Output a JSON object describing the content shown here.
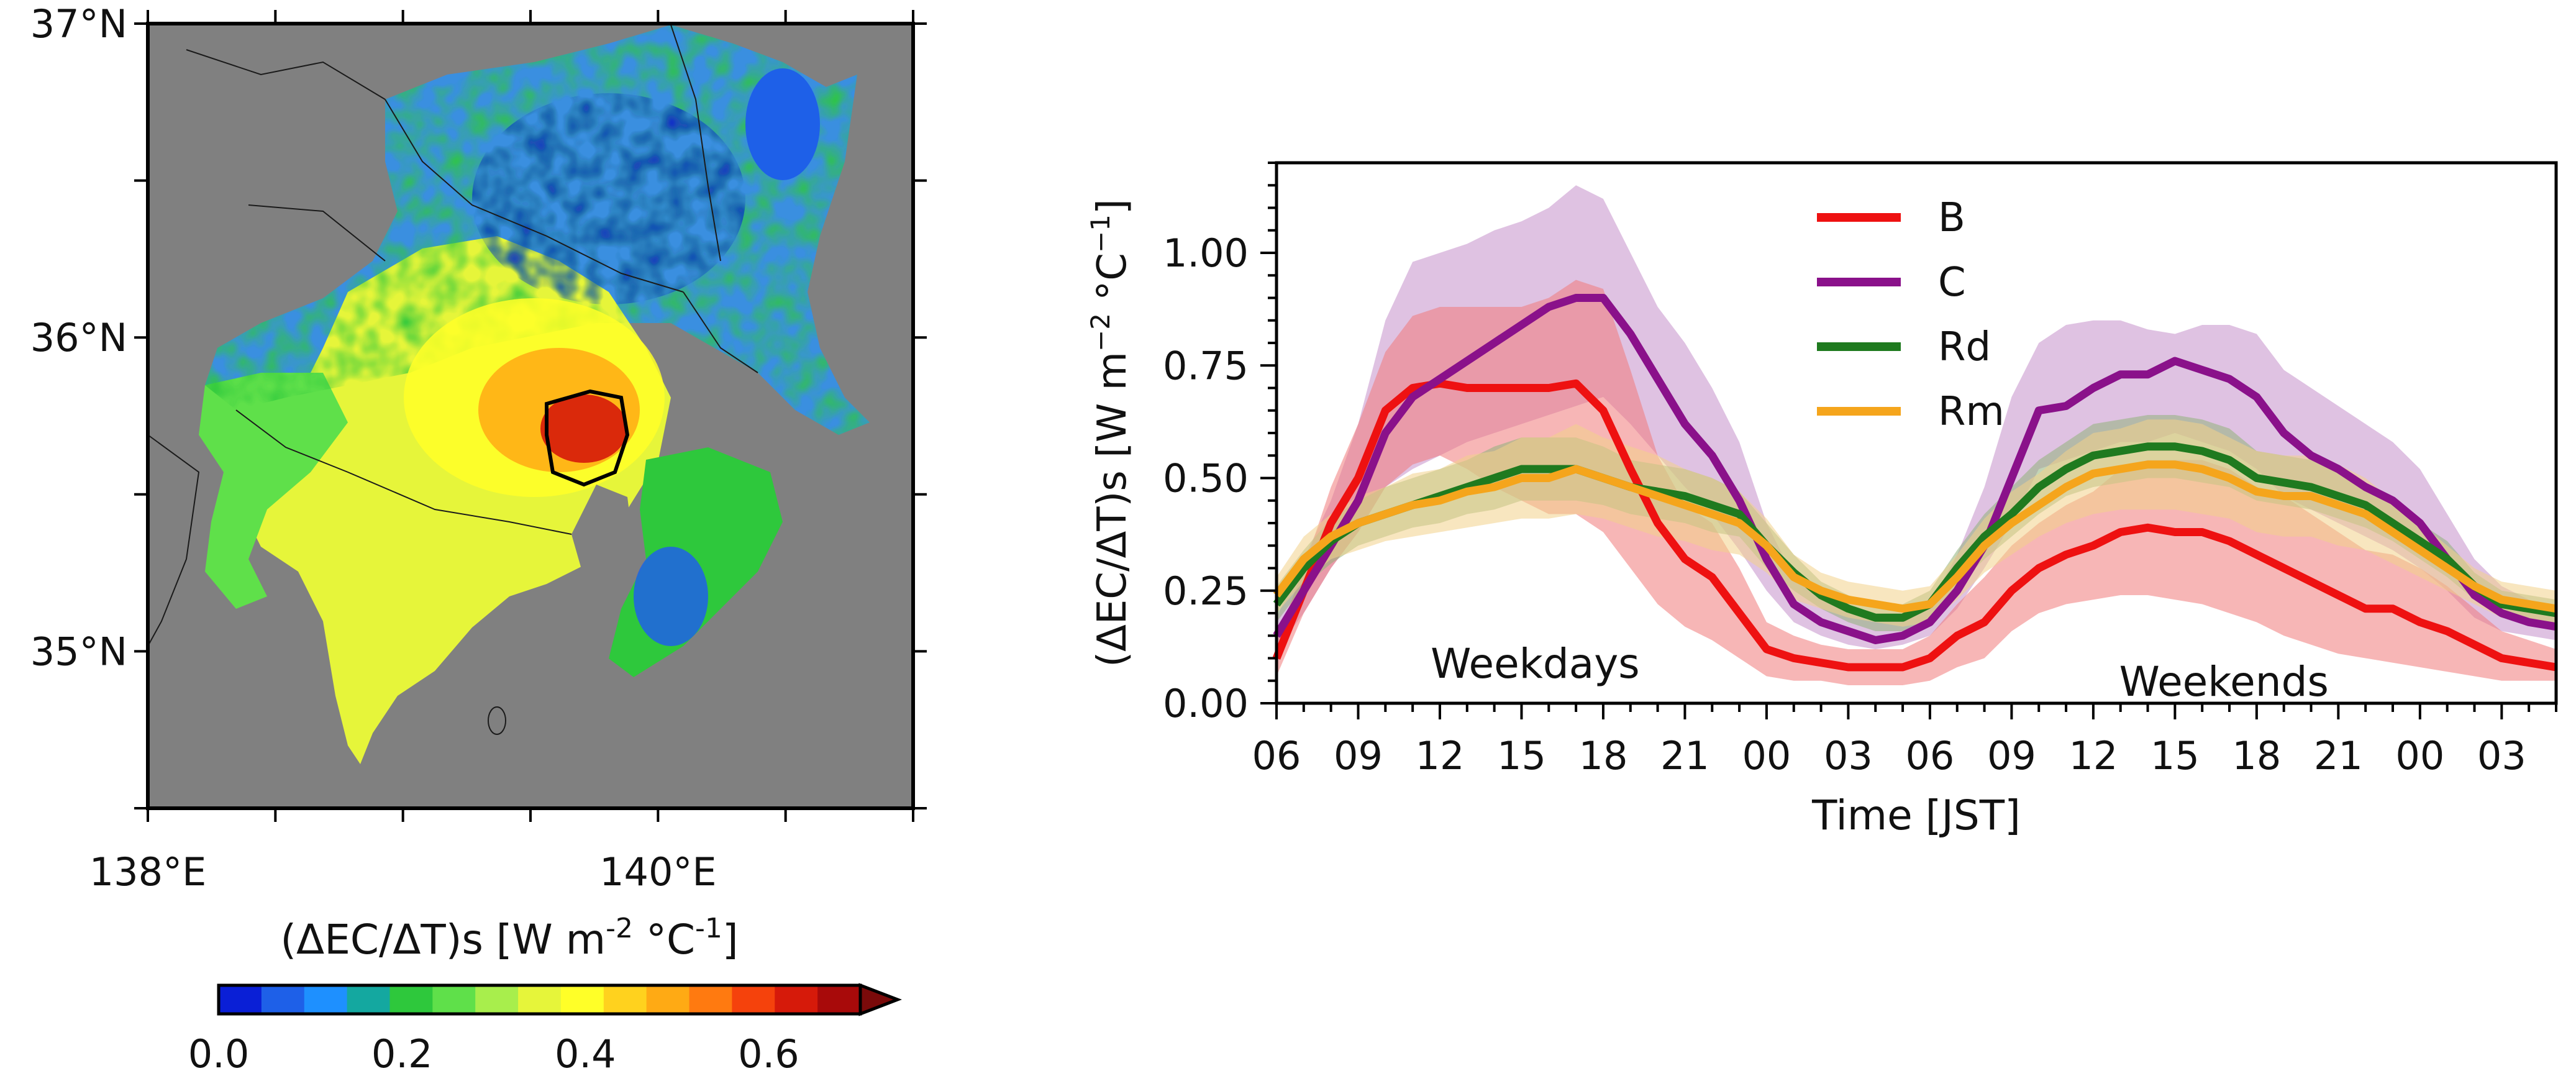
{
  "chart_data": [
    {
      "type": "heatmap",
      "title": "",
      "x_tick_labels": [
        "138°E",
        "140°E"
      ],
      "y_tick_labels": [
        "37°N",
        "36°N",
        "35°N"
      ],
      "x_ticks": [
        138,
        140
      ],
      "y_ticks": [
        37,
        36,
        35
      ],
      "xlim": [
        138,
        141
      ],
      "ylim": [
        34.5,
        37
      ],
      "colorbar": {
        "label_main": "(ΔEC/ΔT)s [W m",
        "label_exp1": "-2",
        "label_mid": " °C",
        "label_exp2": "-1",
        "label_end": "]",
        "tick_labels": [
          "0.0",
          "0.2",
          "0.4",
          "0.6"
        ],
        "ticks": [
          0.0,
          0.2,
          0.4,
          0.6
        ],
        "range": [
          0.0,
          0.7
        ],
        "extend": "max",
        "colors": [
          "#0a1fd6",
          "#1e60e8",
          "#1e90ff",
          "#14a8a0",
          "#2ec83c",
          "#5fe04a",
          "#a8ee4c",
          "#e6f53a",
          "#ffff28",
          "#ffd21e",
          "#ffaa14",
          "#ff7a10",
          "#f5420c",
          "#d61a0a",
          "#a80a0a"
        ]
      },
      "map_colors": {
        "background": "#808080",
        "boundary": "#1a1a1a"
      }
    },
    {
      "type": "line",
      "title": "",
      "xlabel": "Time [JST]",
      "ylabel_main": "(ΔEC/ΔT)s [W m",
      "ylabel_exp1": "−2",
      "ylabel_mid": " °C",
      "ylabel_exp2": "−1",
      "ylabel_end": "]",
      "x": [
        6,
        7,
        8,
        9,
        10,
        11,
        12,
        13,
        14,
        15,
        16,
        17,
        18,
        19,
        20,
        21,
        22,
        23,
        24,
        25,
        26,
        27,
        28,
        29,
        30,
        31,
        32,
        33,
        34,
        35,
        36,
        37,
        38,
        39,
        40,
        41,
        42,
        43,
        44,
        45,
        46,
        47,
        48,
        49,
        50,
        51,
        52,
        53
      ],
      "xlim": [
        6,
        53
      ],
      "ylim": [
        0.0,
        1.2
      ],
      "x_ticks": [
        6,
        9,
        12,
        15,
        18,
        21,
        24,
        27,
        30,
        33,
        36,
        39,
        42,
        45,
        48,
        51
      ],
      "x_tick_labels": [
        "06",
        "09",
        "12",
        "15",
        "18",
        "21",
        "00",
        "03",
        "06",
        "09",
        "12",
        "15",
        "18",
        "21",
        "00",
        "03"
      ],
      "y_ticks": [
        0.0,
        0.25,
        0.5,
        0.75,
        1.0
      ],
      "y_tick_labels": [
        "0.00",
        "0.25",
        "0.50",
        "0.75",
        "1.00"
      ],
      "annotations": [
        {
          "text": "Weekdays",
          "x": 15.5,
          "y": 0.04
        },
        {
          "text": "Weekends",
          "x": 40.8,
          "y": 0.0
        }
      ],
      "legend_placement": "upper-center",
      "series": [
        {
          "name": "B",
          "color": "#ee1111",
          "band_color": "#f07a7a",
          "values": [
            0.1,
            0.25,
            0.4,
            0.5,
            0.65,
            0.7,
            0.71,
            0.7,
            0.7,
            0.7,
            0.7,
            0.71,
            0.65,
            0.52,
            0.4,
            0.32,
            0.28,
            0.2,
            0.12,
            0.1,
            0.09,
            0.08,
            0.08,
            0.08,
            0.1,
            0.15,
            0.18,
            0.25,
            0.3,
            0.33,
            0.35,
            0.38,
            0.39,
            0.38,
            0.38,
            0.36,
            0.33,
            0.3,
            0.27,
            0.24,
            0.21,
            0.21,
            0.18,
            0.16,
            0.13,
            0.1,
            0.09,
            0.08
          ],
          "lower": [
            0.06,
            0.2,
            0.3,
            0.38,
            0.48,
            0.53,
            0.55,
            0.52,
            0.48,
            0.45,
            0.42,
            0.42,
            0.38,
            0.3,
            0.22,
            0.17,
            0.14,
            0.1,
            0.06,
            0.05,
            0.05,
            0.04,
            0.04,
            0.04,
            0.05,
            0.08,
            0.1,
            0.16,
            0.2,
            0.22,
            0.23,
            0.24,
            0.24,
            0.23,
            0.22,
            0.2,
            0.18,
            0.15,
            0.13,
            0.11,
            0.1,
            0.09,
            0.08,
            0.07,
            0.06,
            0.05,
            0.05,
            0.05
          ],
          "upper": [
            0.14,
            0.3,
            0.48,
            0.62,
            0.78,
            0.86,
            0.88,
            0.88,
            0.88,
            0.88,
            0.9,
            0.94,
            0.92,
            0.74,
            0.55,
            0.44,
            0.4,
            0.3,
            0.18,
            0.15,
            0.13,
            0.12,
            0.12,
            0.12,
            0.15,
            0.22,
            0.28,
            0.35,
            0.4,
            0.44,
            0.47,
            0.52,
            0.54,
            0.54,
            0.54,
            0.52,
            0.48,
            0.46,
            0.42,
            0.38,
            0.34,
            0.33,
            0.3,
            0.26,
            0.21,
            0.16,
            0.14,
            0.12
          ]
        },
        {
          "name": "C",
          "color": "#8a118a",
          "band_color": "#c48fca",
          "values": [
            0.15,
            0.25,
            0.35,
            0.45,
            0.6,
            0.68,
            0.72,
            0.76,
            0.8,
            0.84,
            0.88,
            0.9,
            0.9,
            0.82,
            0.72,
            0.62,
            0.55,
            0.45,
            0.32,
            0.22,
            0.18,
            0.16,
            0.14,
            0.15,
            0.18,
            0.25,
            0.35,
            0.5,
            0.65,
            0.66,
            0.7,
            0.73,
            0.73,
            0.76,
            0.74,
            0.72,
            0.68,
            0.6,
            0.55,
            0.52,
            0.48,
            0.45,
            0.4,
            0.32,
            0.24,
            0.2,
            0.18,
            0.17
          ],
          "lower": [
            0.12,
            0.2,
            0.3,
            0.38,
            0.48,
            0.52,
            0.55,
            0.58,
            0.6,
            0.62,
            0.64,
            0.66,
            0.68,
            0.62,
            0.55,
            0.48,
            0.42,
            0.34,
            0.25,
            0.18,
            0.15,
            0.13,
            0.12,
            0.13,
            0.15,
            0.21,
            0.3,
            0.4,
            0.52,
            0.54,
            0.56,
            0.58,
            0.58,
            0.6,
            0.58,
            0.56,
            0.52,
            0.46,
            0.43,
            0.4,
            0.37,
            0.34,
            0.3,
            0.25,
            0.19,
            0.16,
            0.15,
            0.14
          ],
          "upper": [
            0.19,
            0.32,
            0.45,
            0.62,
            0.85,
            0.98,
            1.0,
            1.02,
            1.05,
            1.07,
            1.1,
            1.15,
            1.12,
            1.0,
            0.88,
            0.8,
            0.7,
            0.58,
            0.4,
            0.28,
            0.23,
            0.2,
            0.18,
            0.19,
            0.22,
            0.33,
            0.48,
            0.68,
            0.8,
            0.84,
            0.85,
            0.85,
            0.83,
            0.82,
            0.84,
            0.84,
            0.82,
            0.74,
            0.7,
            0.66,
            0.62,
            0.58,
            0.52,
            0.42,
            0.32,
            0.26,
            0.23,
            0.21
          ]
        },
        {
          "name": "Rd",
          "color": "#1f7a1f",
          "band_color": "#8fb37a",
          "values": [
            0.22,
            0.3,
            0.36,
            0.4,
            0.42,
            0.44,
            0.46,
            0.48,
            0.5,
            0.52,
            0.52,
            0.52,
            0.5,
            0.48,
            0.47,
            0.46,
            0.44,
            0.42,
            0.35,
            0.29,
            0.24,
            0.21,
            0.19,
            0.19,
            0.22,
            0.3,
            0.37,
            0.42,
            0.48,
            0.52,
            0.55,
            0.56,
            0.57,
            0.57,
            0.56,
            0.54,
            0.5,
            0.49,
            0.48,
            0.46,
            0.44,
            0.4,
            0.36,
            0.32,
            0.26,
            0.22,
            0.21,
            0.2
          ],
          "lower": [
            0.18,
            0.26,
            0.31,
            0.35,
            0.37,
            0.39,
            0.4,
            0.42,
            0.43,
            0.45,
            0.45,
            0.45,
            0.44,
            0.42,
            0.41,
            0.4,
            0.38,
            0.37,
            0.3,
            0.25,
            0.21,
            0.18,
            0.16,
            0.16,
            0.19,
            0.26,
            0.32,
            0.37,
            0.42,
            0.46,
            0.48,
            0.49,
            0.5,
            0.5,
            0.49,
            0.48,
            0.45,
            0.44,
            0.43,
            0.41,
            0.39,
            0.36,
            0.32,
            0.28,
            0.23,
            0.19,
            0.18,
            0.17
          ],
          "upper": [
            0.26,
            0.34,
            0.41,
            0.45,
            0.48,
            0.5,
            0.52,
            0.54,
            0.57,
            0.59,
            0.59,
            0.59,
            0.57,
            0.54,
            0.53,
            0.52,
            0.5,
            0.47,
            0.4,
            0.33,
            0.27,
            0.24,
            0.22,
            0.22,
            0.25,
            0.34,
            0.42,
            0.48,
            0.54,
            0.58,
            0.62,
            0.63,
            0.64,
            0.64,
            0.63,
            0.61,
            0.56,
            0.55,
            0.54,
            0.52,
            0.49,
            0.45,
            0.4,
            0.36,
            0.29,
            0.25,
            0.24,
            0.23
          ]
        },
        {
          "name": "Rm",
          "color": "#f5a51c",
          "band_color": "#f2d28a",
          "values": [
            0.24,
            0.32,
            0.37,
            0.4,
            0.42,
            0.44,
            0.45,
            0.47,
            0.48,
            0.5,
            0.5,
            0.52,
            0.5,
            0.48,
            0.46,
            0.44,
            0.42,
            0.4,
            0.35,
            0.28,
            0.25,
            0.23,
            0.22,
            0.21,
            0.22,
            0.28,
            0.35,
            0.4,
            0.44,
            0.48,
            0.51,
            0.52,
            0.53,
            0.53,
            0.52,
            0.5,
            0.47,
            0.46,
            0.46,
            0.44,
            0.42,
            0.38,
            0.34,
            0.3,
            0.26,
            0.23,
            0.22,
            0.21
          ],
          "lower": [
            0.2,
            0.27,
            0.32,
            0.34,
            0.36,
            0.37,
            0.38,
            0.39,
            0.4,
            0.41,
            0.41,
            0.42,
            0.41,
            0.39,
            0.37,
            0.36,
            0.34,
            0.33,
            0.29,
            0.23,
            0.21,
            0.19,
            0.18,
            0.17,
            0.18,
            0.23,
            0.29,
            0.33,
            0.37,
            0.4,
            0.42,
            0.43,
            0.43,
            0.43,
            0.42,
            0.41,
            0.38,
            0.37,
            0.37,
            0.35,
            0.34,
            0.31,
            0.28,
            0.25,
            0.22,
            0.19,
            0.18,
            0.17
          ],
          "upper": [
            0.28,
            0.37,
            0.42,
            0.46,
            0.48,
            0.51,
            0.52,
            0.55,
            0.56,
            0.59,
            0.59,
            0.62,
            0.59,
            0.57,
            0.55,
            0.52,
            0.5,
            0.47,
            0.41,
            0.33,
            0.29,
            0.27,
            0.26,
            0.25,
            0.26,
            0.33,
            0.41,
            0.47,
            0.51,
            0.56,
            0.6,
            0.61,
            0.63,
            0.63,
            0.62,
            0.59,
            0.56,
            0.55,
            0.55,
            0.53,
            0.5,
            0.45,
            0.4,
            0.35,
            0.3,
            0.27,
            0.26,
            0.25
          ]
        }
      ]
    }
  ]
}
